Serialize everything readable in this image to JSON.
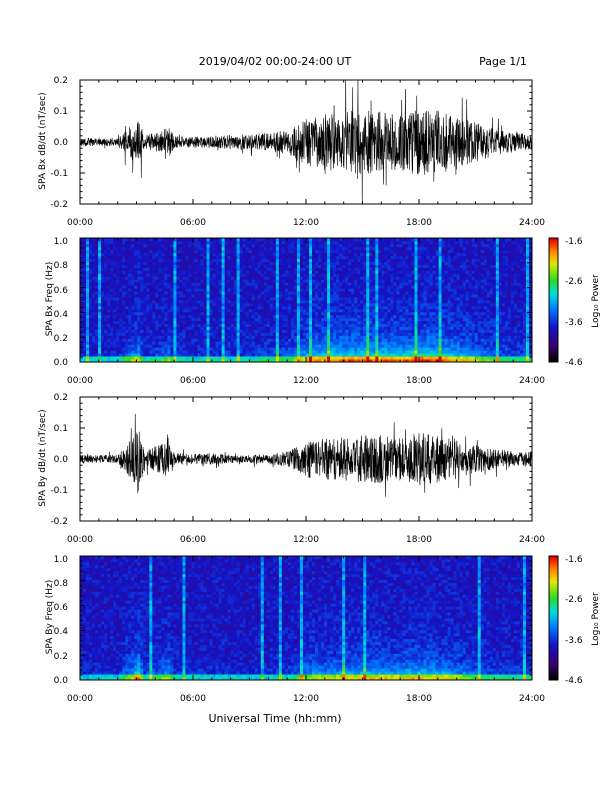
{
  "header": {
    "title": "2019/04/02  00:00-24:00 UT",
    "page": "Page 1/1"
  },
  "footer": {
    "xlabel": "Universal Time (hh:mm)"
  },
  "time_ticks": [
    "00:00",
    "06:00",
    "12:00",
    "18:00",
    "24:00"
  ],
  "chart_data": [
    {
      "type": "line",
      "ylabel": "SPA Bx dB/dt (nT/sec)",
      "xlim": [
        0,
        24
      ],
      "ylim": [
        -0.2,
        0.2
      ],
      "yticks": [
        "0.2",
        "0.1",
        "0.0",
        "-0.1",
        "-0.2"
      ],
      "envelope": {
        "hours": [
          0,
          2,
          2.9,
          3.1,
          3.4,
          4.4,
          4.7,
          5.0,
          6,
          7,
          8,
          9,
          10,
          11,
          11.5,
          12,
          13,
          14,
          15,
          16,
          17,
          18,
          19,
          20,
          21,
          22,
          23,
          24
        ],
        "amplitude": [
          0.02,
          0.02,
          0.1,
          0.13,
          0.03,
          0.06,
          0.09,
          0.03,
          0.025,
          0.03,
          0.035,
          0.04,
          0.045,
          0.06,
          0.08,
          0.12,
          0.14,
          0.15,
          0.16,
          0.15,
          0.14,
          0.17,
          0.16,
          0.13,
          0.1,
          0.07,
          0.05,
          0.04
        ]
      }
    },
    {
      "type": "heatmap",
      "ylabel": "SPA Bx Freq (Hz)",
      "xlim": [
        0,
        24
      ],
      "ylim": [
        0,
        1.0
      ],
      "yticks": [
        "1.0",
        "0.8",
        "0.6",
        "0.4",
        "0.2",
        "0.0"
      ],
      "colorbar": {
        "label": "Log₁₀ Power",
        "range": [
          -4.6,
          -1.6
        ],
        "ticks": [
          "-1.6",
          "-2.6",
          "-3.6",
          "-4.6"
        ]
      }
    },
    {
      "type": "line",
      "ylabel": "SPA By dB/dt (nT/sec)",
      "xlim": [
        0,
        24
      ],
      "ylim": [
        -0.2,
        0.2
      ],
      "yticks": [
        "0.2",
        "0.1",
        "0.0",
        "-0.1",
        "-0.2"
      ],
      "envelope": {
        "hours": [
          0,
          2,
          2.9,
          3.1,
          3.4,
          4.4,
          4.7,
          5.0,
          6,
          7,
          8,
          9,
          10,
          11,
          11.5,
          12,
          13,
          14,
          15,
          16,
          17,
          18,
          19,
          20,
          21,
          22,
          23,
          24
        ],
        "amplitude": [
          0.02,
          0.02,
          0.12,
          0.18,
          0.04,
          0.08,
          0.11,
          0.03,
          0.025,
          0.03,
          0.02,
          0.02,
          0.025,
          0.04,
          0.06,
          0.09,
          0.1,
          0.11,
          0.12,
          0.12,
          0.11,
          0.13,
          0.12,
          0.1,
          0.07,
          0.05,
          0.04,
          0.04
        ]
      }
    },
    {
      "type": "heatmap",
      "ylabel": "SPA By Freq (Hz)",
      "xlim": [
        0,
        24
      ],
      "ylim": [
        0,
        1.0
      ],
      "yticks": [
        "1.0",
        "0.8",
        "0.6",
        "0.4",
        "0.2",
        "0.0"
      ],
      "colorbar": {
        "label": "Log₁₀ Power",
        "range": [
          -4.6,
          -1.6
        ],
        "ticks": [
          "-1.6",
          "-2.6",
          "-3.6",
          "-4.6"
        ]
      }
    }
  ]
}
